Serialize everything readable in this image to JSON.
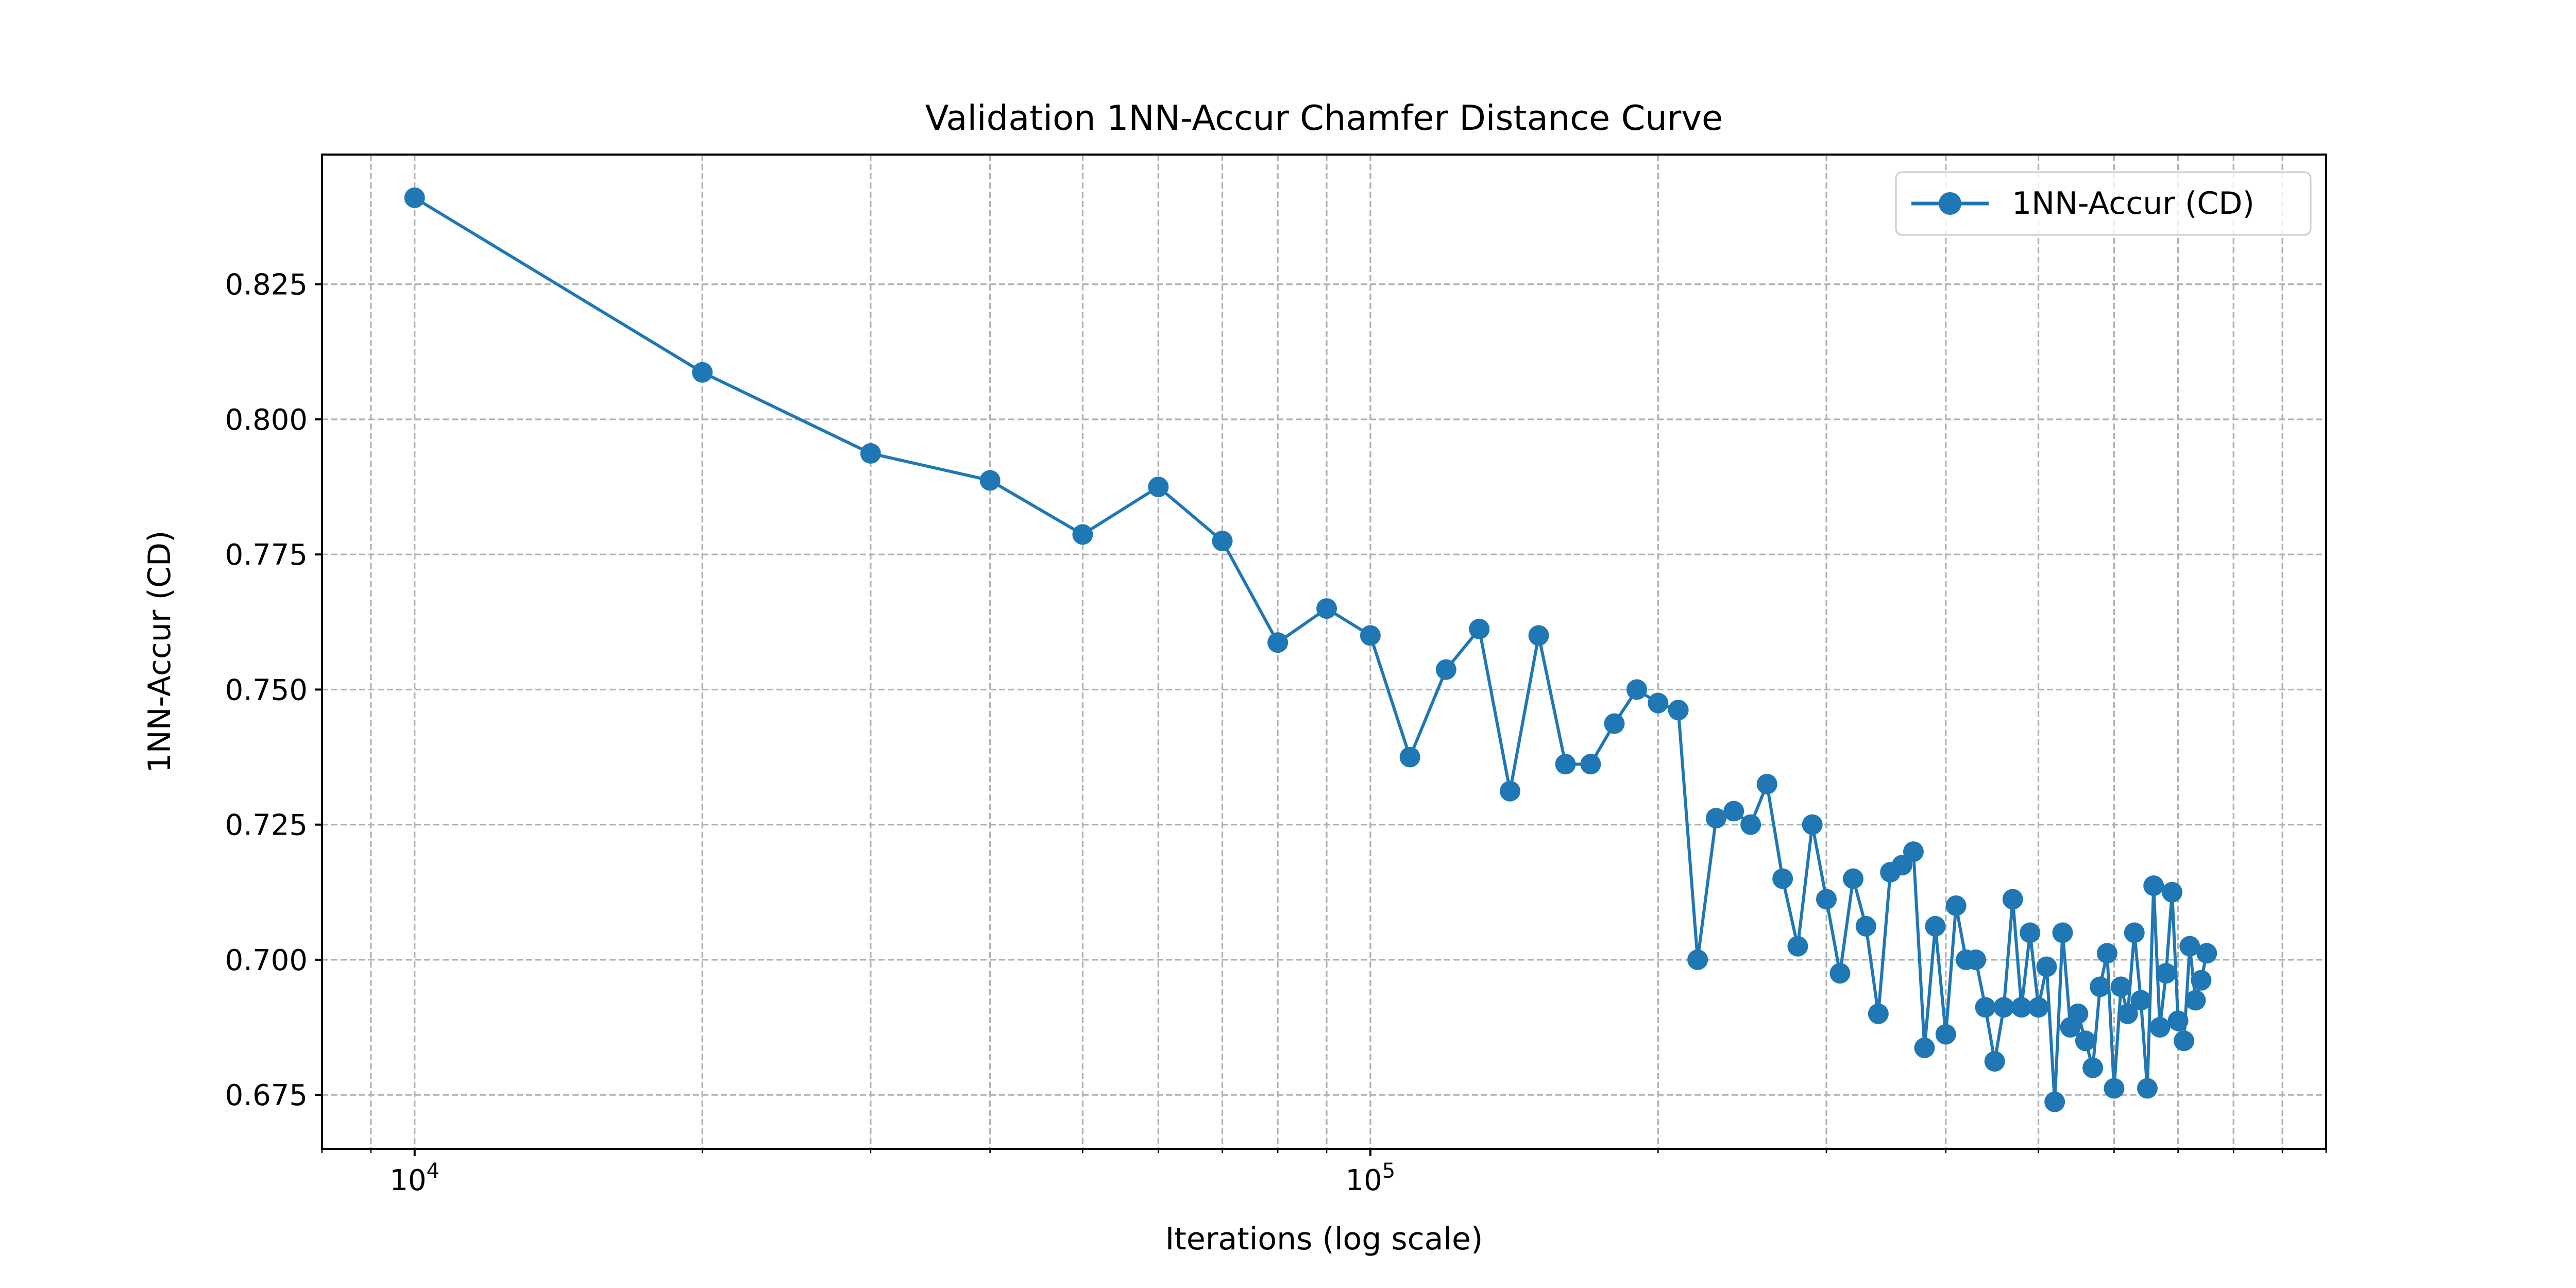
{
  "chart_data": {
    "type": "line",
    "title": "Validation 1NN-Accur Chamfer Distance Curve",
    "xlabel": "Iterations (log scale)",
    "ylabel": "1NN-Accur (CD)",
    "xscale": "log",
    "xlim": [
      8000,
      1000000
    ],
    "ylim": [
      0.665,
      0.849
    ],
    "x_ticks": [
      {
        "value": 10000,
        "base": "10",
        "exp": "4"
      },
      {
        "value": 100000,
        "base": "10",
        "exp": "5"
      }
    ],
    "y_ticks": [
      0.675,
      0.7,
      0.725,
      0.75,
      0.775,
      0.8,
      0.825
    ],
    "y_tick_labels": [
      "0.675",
      "0.700",
      "0.725",
      "0.750",
      "0.775",
      "0.800",
      "0.825"
    ],
    "grid": true,
    "legend": {
      "position": "top-right"
    },
    "color": "#1f77b4",
    "series": [
      {
        "name": "1NN-Accur (CD)",
        "x": [
          10000,
          20000,
          30000,
          40000,
          50000,
          60000,
          70000,
          80000,
          90000,
          100000,
          110000,
          120000,
          130000,
          140000,
          150000,
          160000,
          170000,
          180000,
          190000,
          200000,
          210000,
          220000,
          230000,
          240000,
          250000,
          260000,
          270000,
          280000,
          290000,
          300000,
          310000,
          320000,
          330000,
          340000,
          350000,
          360000,
          370000,
          380000,
          390000,
          400000,
          410000,
          420000,
          430000,
          440000,
          450000,
          460000,
          470000,
          480000,
          490000,
          500000,
          510000,
          520000,
          530000,
          540000,
          550000,
          560000,
          570000,
          580000,
          590000,
          600000,
          610000,
          620000,
          630000,
          640000,
          650000,
          660000,
          670000,
          680000,
          690000,
          700000,
          710000,
          720000,
          730000,
          740000,
          750000
        ],
        "y": [
          0.841,
          0.8087,
          0.7937,
          0.7887,
          0.7787,
          0.7875,
          0.7775,
          0.7587,
          0.765,
          0.76,
          0.7375,
          0.7537,
          0.7612,
          0.7312,
          0.76,
          0.7362,
          0.7362,
          0.7437,
          0.75,
          0.7475,
          0.7462,
          0.7,
          0.7262,
          0.7275,
          0.725,
          0.7325,
          0.715,
          0.7025,
          0.725,
          0.7112,
          0.6975,
          0.715,
          0.7062,
          0.69,
          0.7162,
          0.7175,
          0.72,
          0.6837,
          0.7062,
          0.6862,
          0.71,
          0.7,
          0.7,
          0.6912,
          0.6812,
          0.6912,
          0.7112,
          0.6912,
          0.705,
          0.6912,
          0.6987,
          0.6737,
          0.705,
          0.6875,
          0.69,
          0.685,
          0.68,
          0.695,
          0.7012,
          0.6762,
          0.695,
          0.69,
          0.705,
          0.6925,
          0.6762,
          0.7137,
          0.6875,
          0.6975,
          0.7125,
          0.6887,
          0.685,
          0.7025,
          0.6925,
          0.6962,
          0.7012
        ]
      }
    ]
  }
}
